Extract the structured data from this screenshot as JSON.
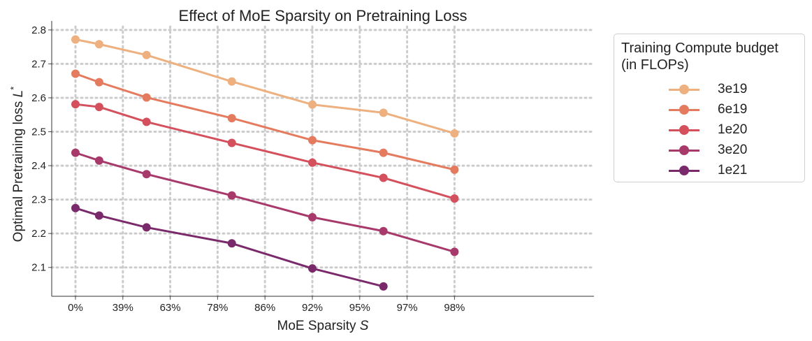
{
  "chart_data": {
    "type": "line",
    "title": "Effect of MoE Sparsity on Pretraining Loss",
    "xlabel": "MoE Sparsity",
    "xlabel_var": "S",
    "ylabel": "Optimal Pretraining loss",
    "ylabel_var": "L",
    "ylabel_sup": "*",
    "categories": [
      "0%",
      "39%",
      "63%",
      "78%",
      "86%",
      "92%",
      "95%",
      "97%",
      "98%"
    ],
    "ylim": [
      2.015,
      2.81
    ],
    "yticks": [
      "2.1",
      "2.2",
      "2.3",
      "2.4",
      "2.5",
      "2.6",
      "2.7",
      "2.8"
    ],
    "grid": true,
    "legend_title": "Training Compute budget\n(in FLOPs)",
    "legend_position": "right",
    "series": [
      {
        "name": "3e19",
        "color": "#edb07e",
        "x": [
          0,
          0.5,
          1.5,
          3.3,
          5.0,
          6.5,
          8.0
        ],
        "values": [
          2.772,
          2.758,
          2.726,
          2.648,
          2.58,
          2.556,
          2.495
        ]
      },
      {
        "name": "6e19",
        "color": "#e57b5e",
        "x": [
          0,
          0.5,
          1.5,
          3.3,
          5.0,
          6.5,
          8.0
        ],
        "values": [
          2.671,
          2.646,
          2.601,
          2.54,
          2.475,
          2.438,
          2.388
        ]
      },
      {
        "name": "1e20",
        "color": "#d4505d",
        "x": [
          0,
          0.5,
          1.5,
          3.3,
          5.0,
          6.5,
          8.0
        ],
        "values": [
          2.581,
          2.573,
          2.529,
          2.467,
          2.409,
          2.364,
          2.303
        ]
      },
      {
        "name": "3e20",
        "color": "#a8396b",
        "x": [
          0,
          0.5,
          1.5,
          3.3,
          5.0,
          6.5,
          8.0
        ],
        "values": [
          2.438,
          2.415,
          2.375,
          2.312,
          2.248,
          2.207,
          2.146
        ]
      },
      {
        "name": "1e21",
        "color": "#7a2a6b",
        "x": [
          0,
          0.5,
          1.5,
          3.3,
          5.0,
          6.5
        ],
        "values": [
          2.275,
          2.253,
          2.218,
          2.171,
          2.097,
          2.044
        ]
      }
    ]
  }
}
